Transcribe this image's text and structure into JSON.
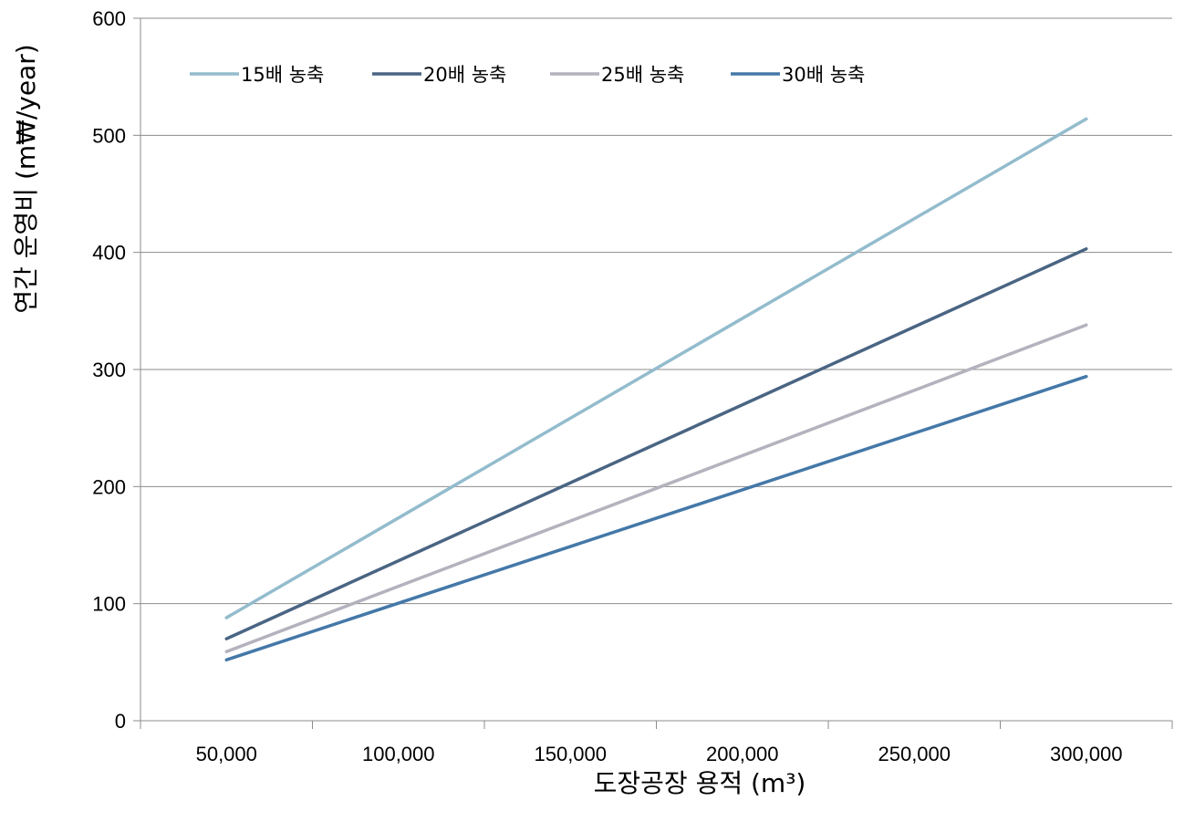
{
  "chart_data": {
    "type": "line",
    "title": "",
    "xlabel": "도장공장 용적 (m³)",
    "ylabel": "연간 운영비 (m₩/year)",
    "x": [
      50000,
      300000
    ],
    "x_tick_labels": [
      "50,000",
      "100,000",
      "150,000",
      "200,000",
      "250,000",
      "300,000"
    ],
    "y_tick_labels": [
      "0",
      "100",
      "200",
      "300",
      "400",
      "500",
      "600"
    ],
    "ylim": [
      0,
      600
    ],
    "grid": "horizontal",
    "legend_position": "top-left",
    "series": [
      {
        "name": "15배 농축",
        "color": "#93bccd",
        "values": [
          88,
          514
        ]
      },
      {
        "name": "20배 농축",
        "color": "#4a6583",
        "values": [
          70,
          403
        ]
      },
      {
        "name": "25배 농축",
        "color": "#b4b2bd",
        "values": [
          59,
          338
        ]
      },
      {
        "name": "30배 농축",
        "color": "#4478a8",
        "values": [
          52,
          294
        ]
      }
    ]
  }
}
